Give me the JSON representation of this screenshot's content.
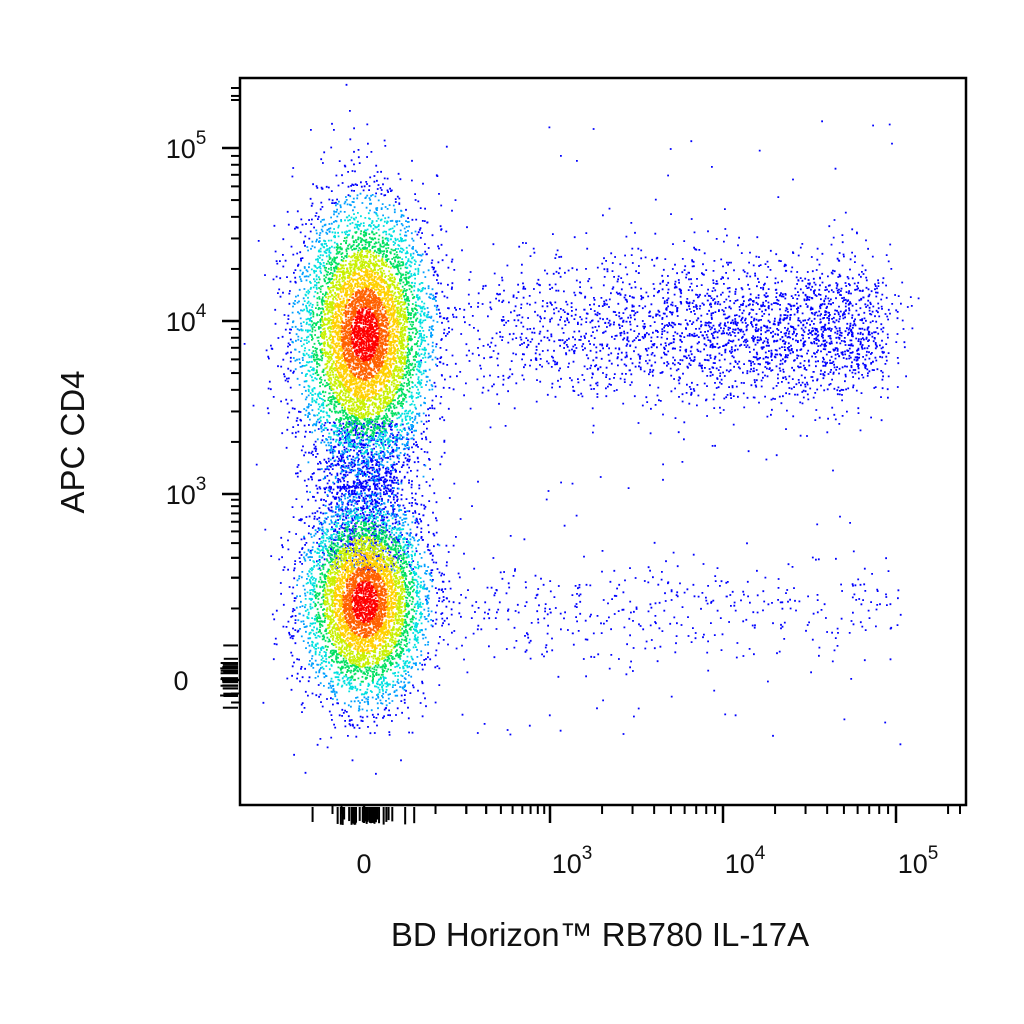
{
  "chart_data": {
    "type": "scatter",
    "subtype": "flow-cytometry-density-dot-plot",
    "xlabel": "BD Horizon™ RB780 IL-17A",
    "ylabel": "APC CD4",
    "x_scale": "biexponential",
    "y_scale": "biexponential",
    "x_ticks": [
      {
        "value": 0,
        "base": "0",
        "exp": ""
      },
      {
        "value": 1000,
        "base": "10",
        "exp": "3"
      },
      {
        "value": 10000,
        "base": "10",
        "exp": "4"
      },
      {
        "value": 100000,
        "base": "10",
        "exp": "5"
      }
    ],
    "y_ticks": [
      {
        "value": 0,
        "base": "0",
        "exp": ""
      },
      {
        "value": 1000,
        "base": "10",
        "exp": "3"
      },
      {
        "value": 10000,
        "base": "10",
        "exp": "4"
      },
      {
        "value": 100000,
        "base": "10",
        "exp": "5"
      }
    ],
    "grid": false,
    "legend": "none",
    "density_colormap": [
      "#0000ff",
      "#00a0ff",
      "#00e0e0",
      "#00e060",
      "#c8f000",
      "#ffd000",
      "#ff6000",
      "#ff0000"
    ],
    "populations": [
      {
        "x_center": 0,
        "y_center": 8500,
        "density": "high"
      },
      {
        "x_center": 0,
        "y_center": 120,
        "density": "high"
      },
      {
        "x_center": 20000,
        "y_center": 9000,
        "density": "low"
      },
      {
        "x_center": 10000,
        "y_center": 100,
        "density": "sparse"
      }
    ]
  }
}
